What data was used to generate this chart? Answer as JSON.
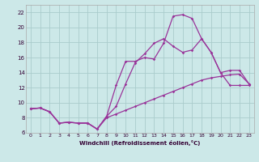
{
  "xlabel": "Windchill (Refroidissement éolien,°C)",
  "bg_color": "#cce8e8",
  "grid_color": "#aacccc",
  "line_color": "#993399",
  "xlim": [
    -0.5,
    23.5
  ],
  "ylim": [
    6,
    23
  ],
  "xticks": [
    0,
    1,
    2,
    3,
    4,
    5,
    6,
    7,
    8,
    9,
    10,
    11,
    12,
    13,
    14,
    15,
    16,
    17,
    18,
    19,
    20,
    21,
    22,
    23
  ],
  "yticks": [
    6,
    8,
    10,
    12,
    14,
    16,
    18,
    20,
    22
  ],
  "series1_x": [
    0,
    1,
    2,
    3,
    4,
    5,
    6,
    7,
    8,
    9,
    10,
    11,
    12,
    13,
    14,
    15,
    16,
    17,
    18,
    19,
    20,
    21,
    22,
    23
  ],
  "series1_y": [
    9.2,
    9.3,
    8.8,
    7.3,
    7.4,
    7.3,
    7.3,
    6.5,
    8.0,
    8.5,
    9.0,
    9.5,
    10.0,
    10.5,
    11.0,
    11.5,
    12.0,
    12.5,
    13.0,
    13.3,
    13.5,
    13.7,
    13.8,
    12.5
  ],
  "series2_x": [
    0,
    1,
    2,
    3,
    4,
    5,
    6,
    7,
    8,
    9,
    10,
    11,
    12,
    13,
    14,
    15,
    16,
    17,
    18,
    19,
    20,
    21,
    22,
    23
  ],
  "series2_y": [
    9.2,
    9.3,
    8.8,
    7.3,
    7.4,
    7.3,
    7.3,
    6.5,
    8.2,
    12.3,
    15.5,
    15.5,
    16.0,
    15.8,
    17.9,
    21.5,
    21.7,
    21.2,
    18.5,
    16.7,
    14.0,
    12.3,
    12.3,
    12.3
  ],
  "series3_x": [
    0,
    1,
    2,
    3,
    4,
    5,
    6,
    7,
    8,
    9,
    10,
    11,
    12,
    13,
    14,
    15,
    16,
    17,
    18,
    19,
    20,
    21,
    22,
    23
  ],
  "series3_y": [
    9.2,
    9.3,
    8.8,
    7.3,
    7.4,
    7.3,
    7.3,
    6.5,
    8.2,
    9.5,
    12.5,
    15.3,
    16.5,
    17.9,
    18.5,
    17.5,
    16.7,
    17.0,
    18.5,
    16.7,
    14.0,
    14.3,
    14.3,
    12.5
  ]
}
